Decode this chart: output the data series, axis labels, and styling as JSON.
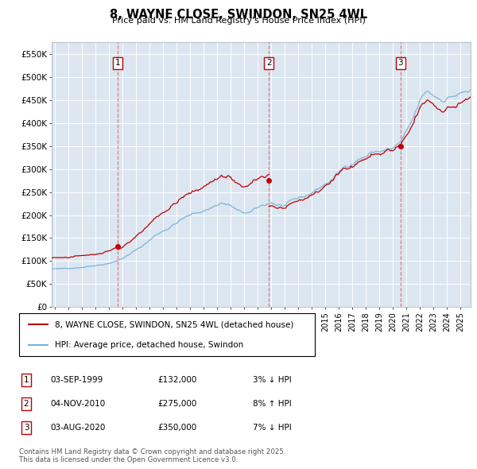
{
  "title": "8, WAYNE CLOSE, SWINDON, SN25 4WL",
  "subtitle": "Price paid vs. HM Land Registry's House Price Index (HPI)",
  "ylabel_ticks": [
    "£0",
    "£50K",
    "£100K",
    "£150K",
    "£200K",
    "£250K",
    "£300K",
    "£350K",
    "£400K",
    "£450K",
    "£500K",
    "£550K"
  ],
  "ylim": [
    0,
    575000
  ],
  "xlim_start": 1994.75,
  "xlim_end": 2025.75,
  "sale_dates": [
    1999.67,
    2010.84,
    2020.58
  ],
  "sale_prices": [
    132000,
    275000,
    350000
  ],
  "sale_labels": [
    "1",
    "2",
    "3"
  ],
  "hpi_line_color": "#7ab0d8",
  "price_line_color": "#c00000",
  "dashed_line_color": "#e06060",
  "background_color": "#dce6f1",
  "grid_color": "#ffffff",
  "legend_entries": [
    "8, WAYNE CLOSE, SWINDON, SN25 4WL (detached house)",
    "HPI: Average price, detached house, Swindon"
  ],
  "table_rows": [
    {
      "num": "1",
      "date": "03-SEP-1999",
      "price": "£132,000",
      "hpi": "3% ↓ HPI"
    },
    {
      "num": "2",
      "date": "04-NOV-2010",
      "price": "£275,000",
      "hpi": "8% ↑ HPI"
    },
    {
      "num": "3",
      "date": "03-AUG-2020",
      "price": "£350,000",
      "hpi": "7% ↓ HPI"
    }
  ],
  "footer": "Contains HM Land Registry data © Crown copyright and database right 2025.\nThis data is licensed under the Open Government Licence v3.0."
}
